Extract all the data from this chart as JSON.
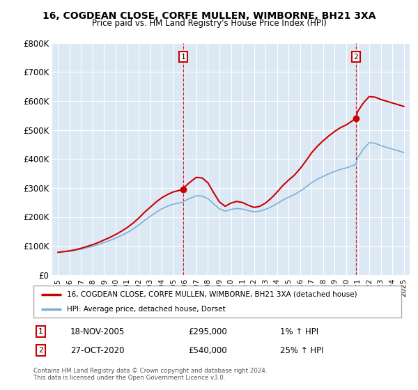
{
  "title": "16, COGDEAN CLOSE, CORFE MULLEN, WIMBORNE, BH21 3XA",
  "subtitle": "Price paid vs. HM Land Registry's House Price Index (HPI)",
  "legend_line1": "16, COGDEAN CLOSE, CORFE MULLEN, WIMBORNE, BH21 3XA (detached house)",
  "legend_line2": "HPI: Average price, detached house, Dorset",
  "footer": "Contains HM Land Registry data © Crown copyright and database right 2024.\nThis data is licensed under the Open Government Licence v3.0.",
  "annotation1_date": "18-NOV-2005",
  "annotation1_price": "£295,000",
  "annotation1_hpi": "1% ↑ HPI",
  "annotation2_date": "27-OCT-2020",
  "annotation2_price": "£540,000",
  "annotation2_hpi": "25% ↑ HPI",
  "plot_bg_color": "#dce9f5",
  "fig_bg_color": "#ffffff",
  "red_color": "#cc0000",
  "blue_color": "#7ab0d4",
  "grid_color": "#ffffff",
  "border_color": "#aaaaaa",
  "ylim": [
    0,
    800000
  ],
  "yticks": [
    0,
    100000,
    200000,
    300000,
    400000,
    500000,
    600000,
    700000,
    800000
  ],
  "ytick_labels": [
    "£0",
    "£100K",
    "£200K",
    "£300K",
    "£400K",
    "£500K",
    "£600K",
    "£700K",
    "£800K"
  ],
  "sale1_year": 2005.88,
  "sale1_value": 295000,
  "sale2_year": 2020.83,
  "sale2_value": 540000,
  "xlim_start": 1994.5,
  "xlim_end": 2025.5
}
